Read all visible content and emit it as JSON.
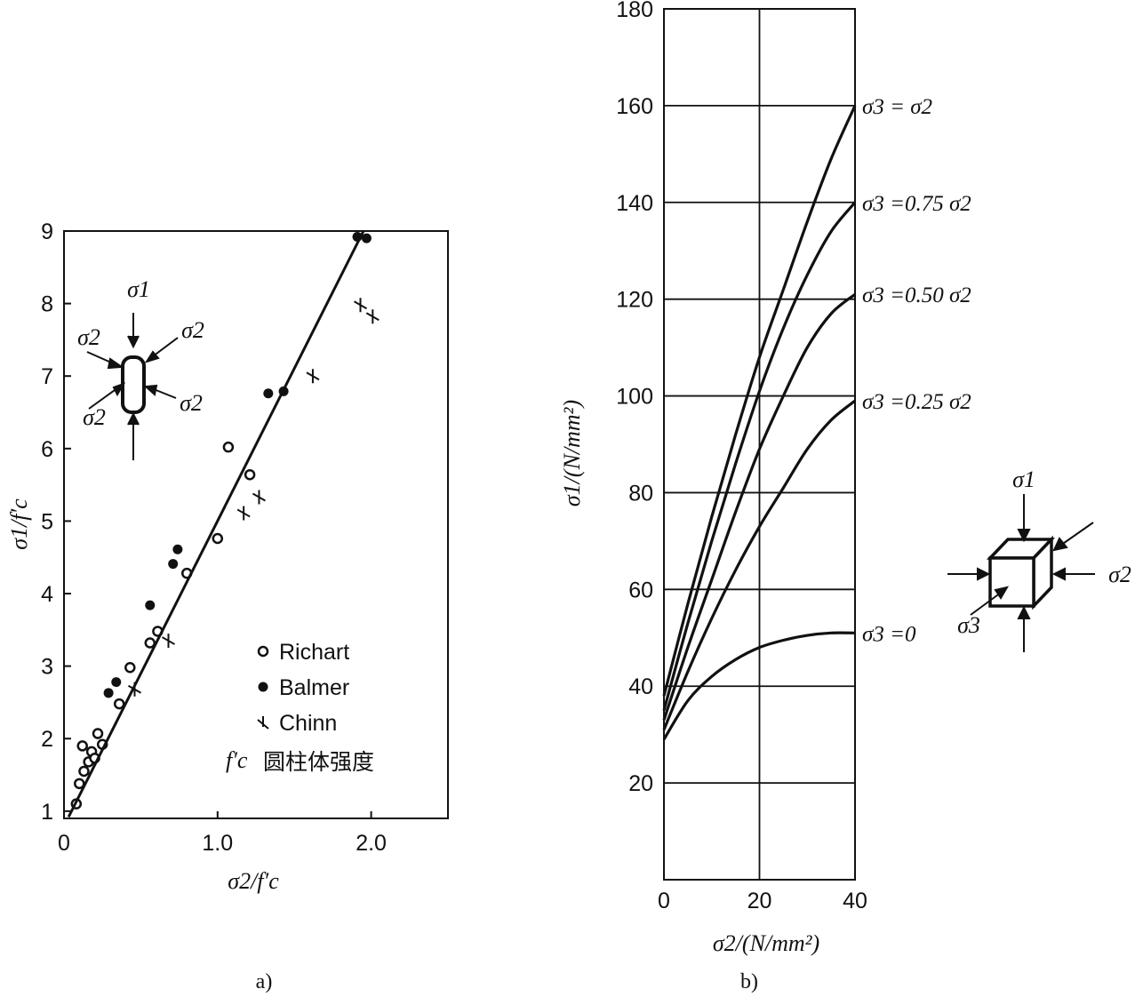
{
  "chart_data": [
    {
      "type": "scatter",
      "panel_label": "a)",
      "xlabel": "σ2/f′c",
      "ylabel": "σ1/f′c",
      "xlim": [
        0,
        2.5
      ],
      "ylim": [
        0.9,
        9
      ],
      "x_ticks": [
        "0",
        "1.0",
        "2.0"
      ],
      "x_tick_values": [
        0,
        1.0,
        2.0
      ],
      "y_ticks": [
        "1",
        "2",
        "3",
        "4",
        "5",
        "6",
        "7",
        "8",
        "9"
      ],
      "y_tick_values": [
        1,
        2,
        3,
        4,
        5,
        6,
        7,
        8,
        9
      ],
      "grid": false,
      "legend_position": "bottom-right",
      "series": [
        {
          "name": "Richart",
          "marker": "open-circle",
          "points": [
            [
              0.08,
              1.1
            ],
            [
              0.1,
              1.38
            ],
            [
              0.13,
              1.55
            ],
            [
              0.16,
              1.68
            ],
            [
              0.18,
              1.82
            ],
            [
              0.12,
              1.9
            ],
            [
              0.22,
              2.07
            ],
            [
              0.25,
              1.92
            ],
            [
              0.2,
              1.73
            ],
            [
              0.36,
              2.48
            ],
            [
              0.43,
              2.98
            ],
            [
              0.56,
              3.32
            ],
            [
              0.61,
              3.48
            ],
            [
              0.8,
              4.28
            ],
            [
              1.0,
              4.76
            ],
            [
              1.21,
              5.64
            ],
            [
              1.07,
              6.02
            ]
          ]
        },
        {
          "name": "Balmer",
          "marker": "filled-circle",
          "points": [
            [
              0.29,
              2.63
            ],
            [
              0.34,
              2.78
            ],
            [
              0.56,
              3.84
            ],
            [
              0.71,
              4.41
            ],
            [
              0.74,
              4.61
            ],
            [
              1.33,
              6.76
            ],
            [
              1.43,
              6.79
            ],
            [
              1.91,
              8.92
            ],
            [
              1.97,
              8.9
            ]
          ]
        },
        {
          "name": "Chinn",
          "marker": "plus",
          "points": [
            [
              0.46,
              2.68
            ],
            [
              0.68,
              3.35
            ],
            [
              1.17,
              5.11
            ],
            [
              1.27,
              5.33
            ],
            [
              1.62,
              7.0
            ],
            [
              1.93,
              7.98
            ],
            [
              2.01,
              7.82
            ]
          ]
        },
        {
          "name": "",
          "type": "line",
          "points": [
            [
              0.03,
              0.92
            ],
            [
              1.95,
              9.0
            ]
          ]
        }
      ],
      "legend": [
        {
          "marker": "open-circle",
          "label": "Richart"
        },
        {
          "marker": "filled-circle",
          "label": "Balmer"
        },
        {
          "marker": "plus",
          "label": "Chinn"
        }
      ],
      "note": {
        "prefix": "f′c",
        "text": "圆柱体强度"
      },
      "inset_labels": {
        "top": "σ1",
        "left_upper": "σ2",
        "right_upper": "σ2",
        "left_lower": "σ2",
        "right_lower": "σ2"
      }
    },
    {
      "type": "line",
      "panel_label": "b)",
      "xlabel": "σ2/(N/mm²)",
      "ylabel": "σ1/(N/mm²)",
      "xlim": [
        0,
        40
      ],
      "ylim": [
        0,
        180
      ],
      "x_ticks": [
        "0",
        "20",
        "40"
      ],
      "x_tick_values": [
        0,
        20,
        40
      ],
      "y_ticks": [
        "20",
        "40",
        "60",
        "80",
        "100",
        "120",
        "140",
        "160",
        "180"
      ],
      "y_tick_values": [
        20,
        40,
        60,
        80,
        100,
        120,
        140,
        160,
        180
      ],
      "grid": true,
      "series": [
        {
          "name": "σ3 = σ2",
          "points": [
            [
              0,
              38
            ],
            [
              5,
              57
            ],
            [
              10,
              75
            ],
            [
              15,
              92
            ],
            [
              20,
              108
            ],
            [
              25,
              122
            ],
            [
              30,
              136
            ],
            [
              35,
              149
            ],
            [
              40,
              160
            ]
          ]
        },
        {
          "name": "σ3 =0.75 σ2",
          "points": [
            [
              0,
              35
            ],
            [
              5,
              53
            ],
            [
              10,
              70
            ],
            [
              15,
              86
            ],
            [
              20,
              101
            ],
            [
              25,
              114
            ],
            [
              30,
              125
            ],
            [
              35,
              134
            ],
            [
              40,
              140
            ]
          ]
        },
        {
          "name": "σ3 =0.50 σ2",
          "points": [
            [
              0,
              33
            ],
            [
              5,
              48
            ],
            [
              10,
              62
            ],
            [
              15,
              76
            ],
            [
              20,
              89
            ],
            [
              25,
              100
            ],
            [
              30,
              110
            ],
            [
              35,
              117
            ],
            [
              40,
              121
            ]
          ]
        },
        {
          "name": "σ3 =0.25 σ2",
          "points": [
            [
              0,
              31
            ],
            [
              5,
              43
            ],
            [
              10,
              54
            ],
            [
              15,
              64
            ],
            [
              20,
              73
            ],
            [
              25,
              81
            ],
            [
              30,
              89
            ],
            [
              35,
              95
            ],
            [
              40,
              99
            ]
          ]
        },
        {
          "name": "σ3 =0",
          "points": [
            [
              0,
              29
            ],
            [
              5,
              37
            ],
            [
              10,
              42
            ],
            [
              15,
              45.5
            ],
            [
              20,
              48
            ],
            [
              25,
              49.5
            ],
            [
              30,
              50.5
            ],
            [
              35,
              51
            ],
            [
              40,
              51
            ]
          ]
        }
      ],
      "inset_labels": {
        "top": "σ1",
        "right": "σ2",
        "bottom_left": "σ3"
      }
    }
  ]
}
